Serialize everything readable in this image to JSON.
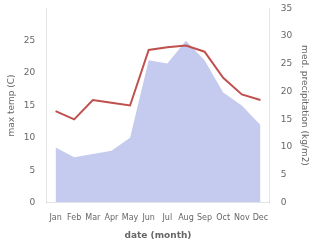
{
  "chart_data": {
    "type": "line",
    "xlabel": "date (month)",
    "ylabel": "max temp (C)",
    "y2label": "med. precipitation (kg/m2)",
    "categories": [
      "Jan",
      "Feb",
      "Mar",
      "Apr",
      "May",
      "Jun",
      "Jul",
      "Aug",
      "Sep",
      "Oct",
      "Nov",
      "Dec"
    ],
    "series": [
      {
        "type": "area",
        "color": "#c5cbee",
        "values": [
          8.5,
          7.0,
          7.5,
          8.0,
          10.0,
          22.0,
          21.5,
          25.0,
          22.0,
          17.0,
          15.0,
          12.0
        ]
      },
      {
        "type": "line",
        "color": "#c0504d",
        "axis": "y2",
        "values": [
          16.5,
          15.0,
          18.5,
          18.0,
          17.5,
          27.5,
          28.0,
          28.3,
          27.2,
          22.5,
          19.5,
          18.5
        ]
      }
    ],
    "ylim": [
      0,
      30
    ],
    "yticks": [
      0,
      5,
      10,
      15,
      20,
      25
    ],
    "y2lim": [
      0,
      35
    ],
    "y2ticks": [
      0,
      5,
      10,
      15,
      20,
      25,
      30,
      35
    ],
    "grid": false
  }
}
